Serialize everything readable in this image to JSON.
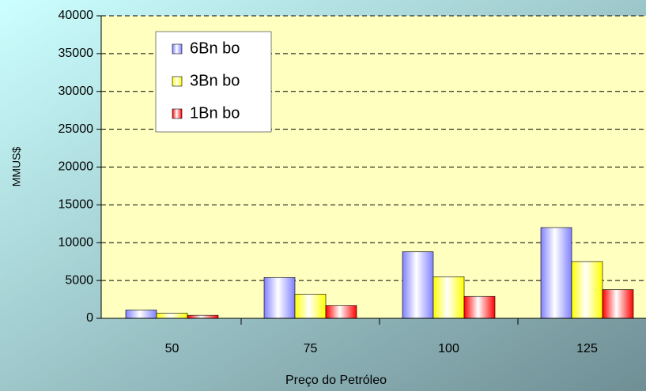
{
  "chart_data": {
    "type": "bar",
    "x_label": "Preço do Petróleo",
    "y_label": "MMUS$",
    "categories": [
      "50",
      "75",
      "100",
      "125"
    ],
    "series": [
      {
        "name": "6Bn bo",
        "color": "#8080ff",
        "values": [
          1100,
          5400,
          8800,
          12000
        ]
      },
      {
        "name": "3Bn bo",
        "color": "#ffff00",
        "values": [
          700,
          3200,
          5500,
          7500
        ]
      },
      {
        "name": "1Bn bo",
        "color": "#ff0000",
        "values": [
          400,
          1700,
          2900,
          3800
        ]
      }
    ],
    "ylim": [
      0,
      40000
    ],
    "yticks": [
      0,
      5000,
      10000,
      15000,
      20000,
      25000,
      30000,
      35000,
      40000
    ],
    "grid": true,
    "legend": "top-left"
  }
}
